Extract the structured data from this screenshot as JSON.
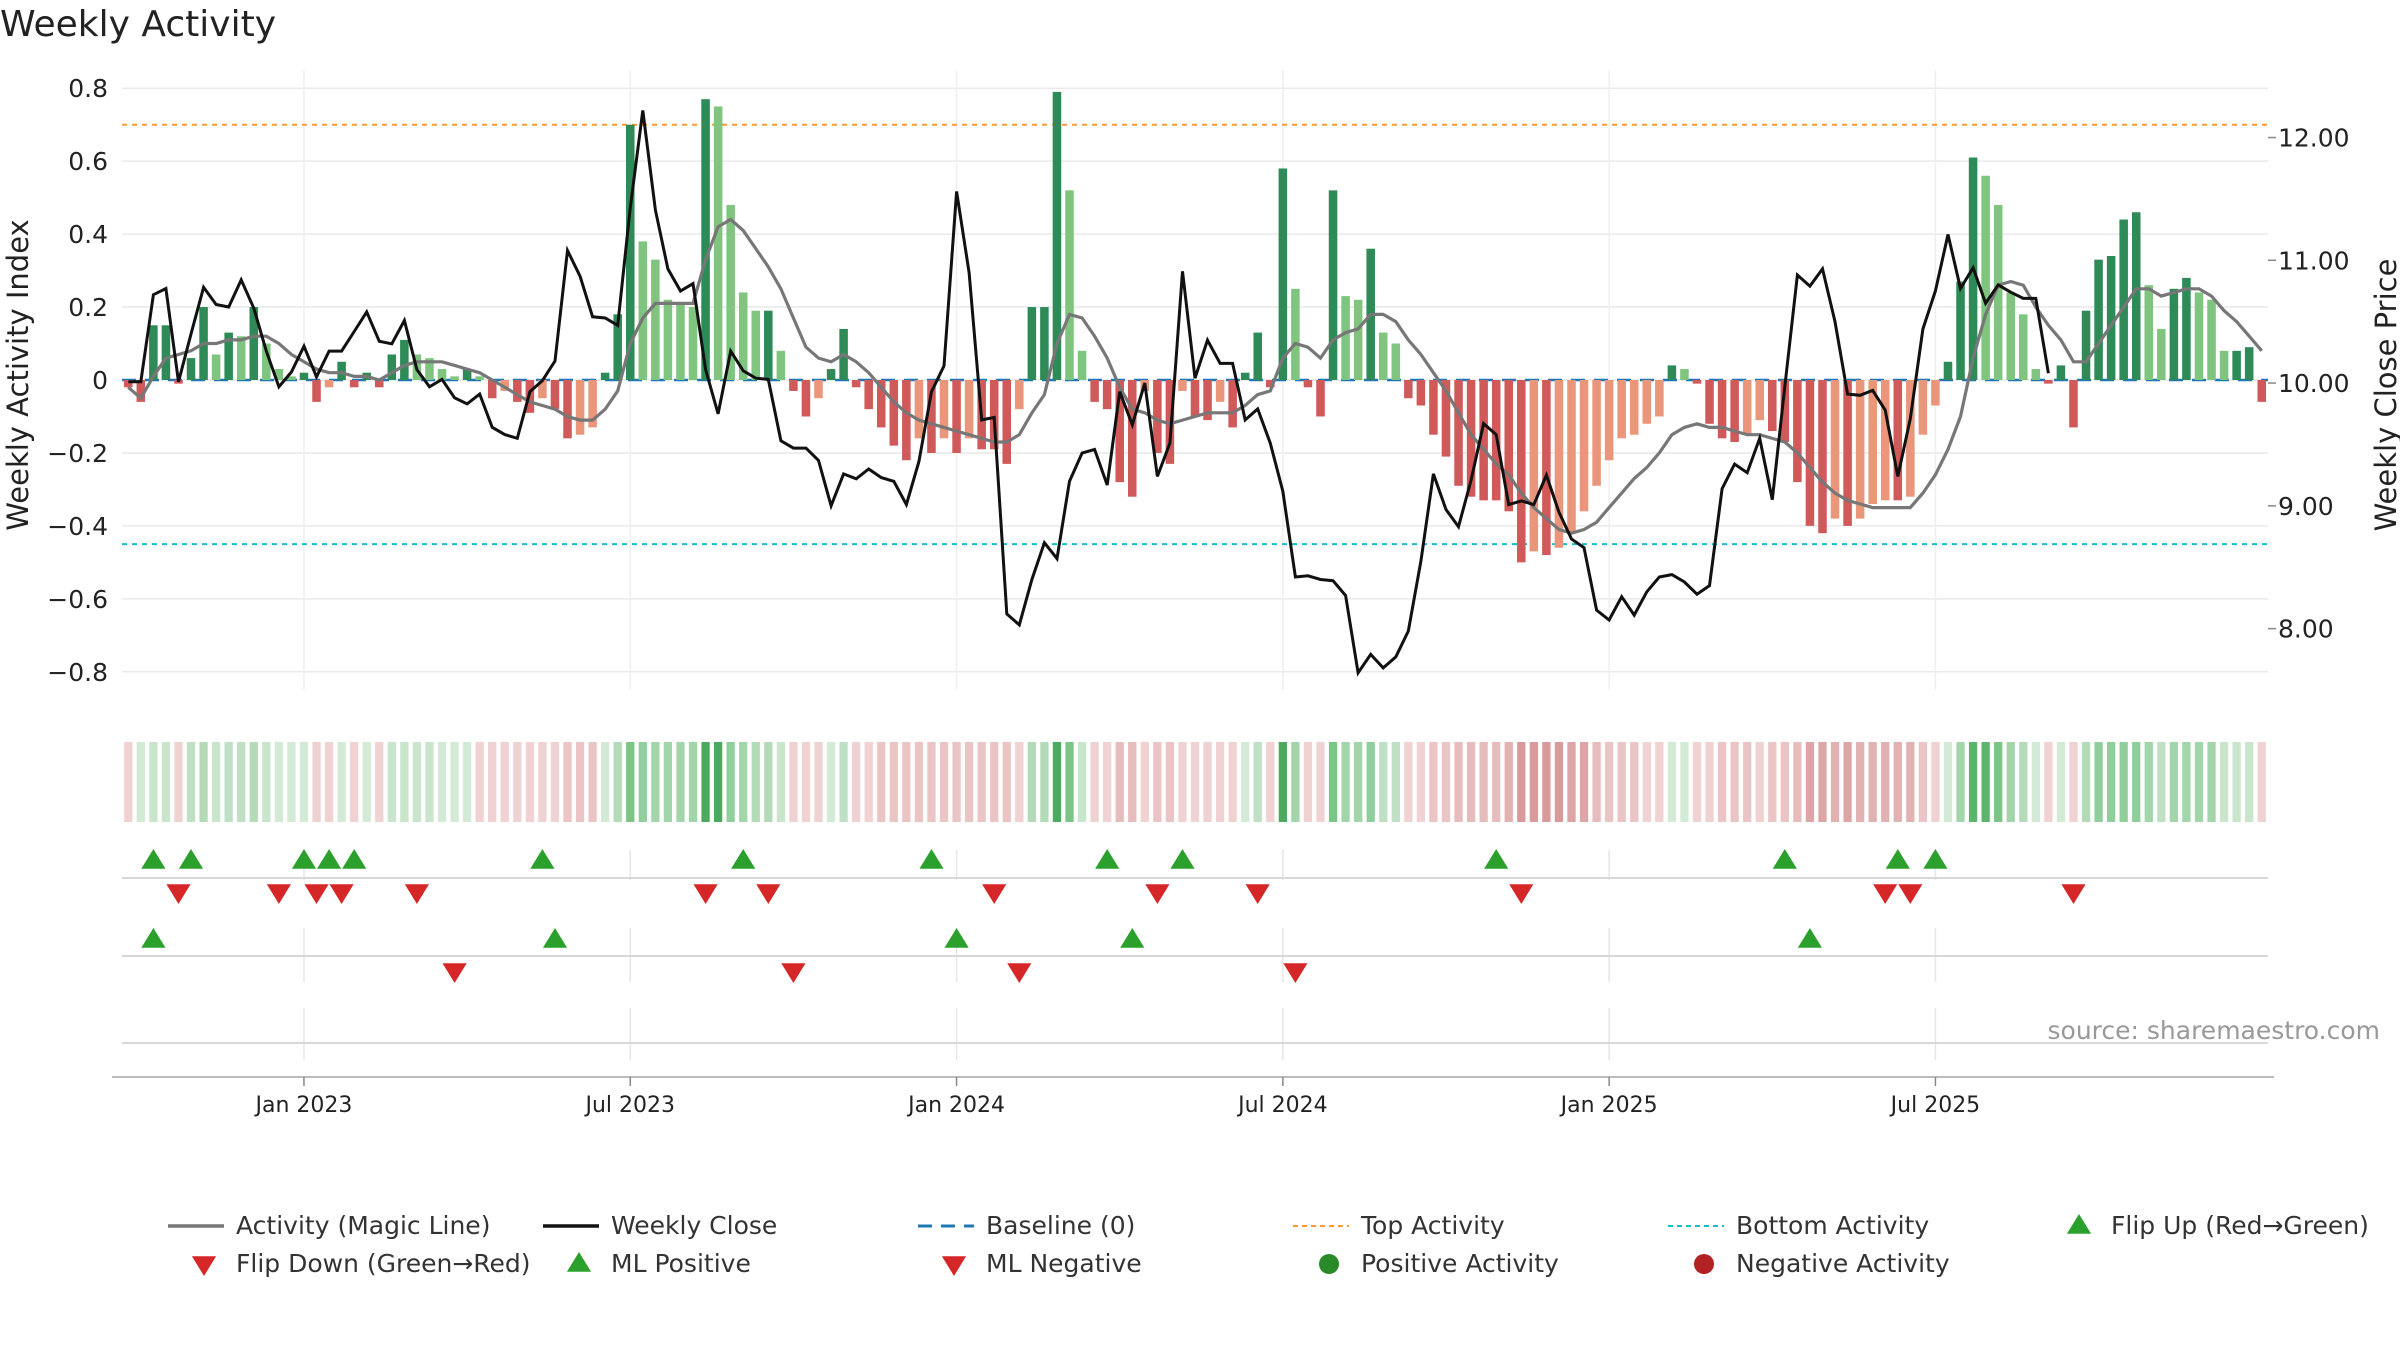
{
  "chart_data": {
    "type": "bar",
    "title": "Weekly Activity",
    "ylabel": "Weekly Activity Index",
    "y2label": "Weekly Close Price",
    "source": "source: sharemaestro.com",
    "ylim": [
      -0.85,
      0.85
    ],
    "y2lim": [
      7.5,
      12.55
    ],
    "yticks": [
      0.8,
      0.6,
      0.4,
      0.2,
      0,
      -0.2,
      -0.4,
      -0.6,
      -0.8
    ],
    "ytick_labels": [
      "0.8",
      "0.6",
      "0.4",
      "0.2",
      "0",
      "−0.2",
      "−0.4",
      "−0.6",
      "−0.8"
    ],
    "y2ticks": [
      12.0,
      11.0,
      10.0,
      9.0,
      8.0
    ],
    "y2tick_labels": [
      "12.00",
      "11.00",
      "10.00",
      "9.00",
      "8.00"
    ],
    "xticks": [
      {
        "week": 14,
        "label": "Jan 2023"
      },
      {
        "week": 40,
        "label": "Jul 2023"
      },
      {
        "week": 66,
        "label": "Jan 2024"
      },
      {
        "week": 92,
        "label": "Jul 2024"
      },
      {
        "week": 118,
        "label": "Jan 2025"
      },
      {
        "week": 144,
        "label": "Jul 2025"
      }
    ],
    "reference_lines": {
      "baseline": 0,
      "top_activity": 0.7,
      "bottom_activity": -0.45
    },
    "activity": [
      -0.02,
      -0.06,
      0.15,
      0.15,
      -0.01,
      0.06,
      0.2,
      0.07,
      0.13,
      0.12,
      0.2,
      0.1,
      0.03,
      0.01,
      0.02,
      -0.06,
      -0.02,
      0.05,
      -0.02,
      0.02,
      -0.02,
      0.07,
      0.11,
      0.07,
      0.06,
      0.03,
      0.01,
      0.03,
      0.01,
      -0.05,
      -0.03,
      -0.06,
      -0.09,
      -0.05,
      -0.08,
      -0.16,
      -0.15,
      -0.13,
      0.02,
      0.18,
      0.7,
      0.38,
      0.33,
      0.22,
      0.21,
      0.2,
      0.77,
      0.75,
      0.48,
      0.24,
      0.19,
      0.19,
      0.08,
      -0.03,
      -0.1,
      -0.05,
      0.03,
      0.14,
      -0.02,
      -0.08,
      -0.13,
      -0.18,
      -0.22,
      -0.16,
      -0.2,
      -0.16,
      -0.2,
      -0.16,
      -0.19,
      -0.19,
      -0.23,
      -0.08,
      0.2,
      0.2,
      0.79,
      0.52,
      0.08,
      -0.06,
      -0.08,
      -0.28,
      -0.32,
      -0.03,
      -0.2,
      -0.23,
      -0.03,
      -0.1,
      -0.11,
      -0.06,
      -0.13,
      0.02,
      0.13,
      -0.02,
      0.58,
      0.25,
      -0.02,
      -0.1,
      0.52,
      0.23,
      0.22,
      0.36,
      0.13,
      0.1,
      -0.05,
      -0.07,
      -0.15,
      -0.21,
      -0.29,
      -0.32,
      -0.33,
      -0.33,
      -0.36,
      -0.5,
      -0.47,
      -0.48,
      -0.46,
      -0.42,
      -0.36,
      -0.29,
      -0.22,
      -0.16,
      -0.15,
      -0.12,
      -0.1,
      0.04,
      0.03,
      -0.01,
      -0.12,
      -0.16,
      -0.17,
      -0.15,
      -0.11,
      -0.14,
      -0.17,
      -0.28,
      -0.4,
      -0.42,
      -0.38,
      -0.4,
      -0.38,
      -0.34,
      -0.33,
      -0.33,
      -0.32,
      -0.15,
      -0.07,
      0.05,
      0.27,
      0.61,
      0.56,
      0.48,
      0.24,
      0.18,
      0.03,
      -0.01,
      0.04,
      -0.13,
      0.19,
      0.33,
      0.34,
      0.44,
      0.46,
      0.26,
      0.14,
      0.25,
      0.28,
      0.24,
      0.22,
      0.08,
      0.08,
      0.09,
      -0.06
    ],
    "magic_line": [
      -0.02,
      -0.05,
      0.01,
      0.06,
      0.07,
      0.08,
      0.1,
      0.1,
      0.11,
      0.11,
      0.12,
      0.12,
      0.1,
      0.07,
      0.05,
      0.03,
      0.02,
      0.02,
      0.01,
      0.01,
      0.0,
      0.02,
      0.04,
      0.05,
      0.05,
      0.05,
      0.04,
      0.03,
      0.02,
      0.0,
      -0.02,
      -0.04,
      -0.06,
      -0.07,
      -0.08,
      -0.1,
      -0.11,
      -0.11,
      -0.08,
      -0.03,
      0.1,
      0.17,
      0.21,
      0.21,
      0.21,
      0.21,
      0.33,
      0.42,
      0.44,
      0.41,
      0.36,
      0.31,
      0.25,
      0.17,
      0.09,
      0.06,
      0.05,
      0.07,
      0.05,
      0.02,
      -0.02,
      -0.06,
      -0.09,
      -0.11,
      -0.12,
      -0.13,
      -0.14,
      -0.15,
      -0.16,
      -0.17,
      -0.17,
      -0.15,
      -0.09,
      -0.04,
      0.1,
      0.18,
      0.17,
      0.12,
      0.06,
      -0.02,
      -0.08,
      -0.09,
      -0.11,
      -0.12,
      -0.11,
      -0.1,
      -0.09,
      -0.09,
      -0.09,
      -0.07,
      -0.04,
      -0.03,
      0.06,
      0.1,
      0.09,
      0.06,
      0.11,
      0.13,
      0.14,
      0.18,
      0.18,
      0.16,
      0.11,
      0.07,
      0.02,
      -0.03,
      -0.09,
      -0.15,
      -0.19,
      -0.23,
      -0.26,
      -0.31,
      -0.35,
      -0.38,
      -0.41,
      -0.42,
      -0.41,
      -0.39,
      -0.35,
      -0.31,
      -0.27,
      -0.24,
      -0.2,
      -0.15,
      -0.13,
      -0.12,
      -0.13,
      -0.13,
      -0.14,
      -0.15,
      -0.15,
      -0.16,
      -0.17,
      -0.2,
      -0.24,
      -0.28,
      -0.31,
      -0.33,
      -0.34,
      -0.35,
      -0.35,
      -0.35,
      -0.35,
      -0.31,
      -0.26,
      -0.19,
      -0.1,
      0.06,
      0.18,
      0.26,
      0.27,
      0.26,
      0.2,
      0.15,
      0.11,
      0.05,
      0.05,
      0.1,
      0.15,
      0.2,
      0.25,
      0.25,
      0.23,
      0.24,
      0.25,
      0.25,
      0.23,
      0.19,
      0.16,
      0.12,
      0.08
    ],
    "weekly_close": [
      10.01,
      10.01,
      10.72,
      10.77,
      10.01,
      10.4,
      10.78,
      10.64,
      10.62,
      10.84,
      10.61,
      10.26,
      9.97,
      10.09,
      10.3,
      10.05,
      10.26,
      10.26,
      10.42,
      10.58,
      10.34,
      10.32,
      10.51,
      10.11,
      9.97,
      10.03,
      9.88,
      9.83,
      9.91,
      9.64,
      9.58,
      9.55,
      9.93,
      10.02,
      10.18,
      11.08,
      10.87,
      10.54,
      10.53,
      10.47,
      11.43,
      12.22,
      11.41,
      10.93,
      10.75,
      10.81,
      10.11,
      9.75,
      10.26,
      10.1,
      10.04,
      10.03,
      9.53,
      9.47,
      9.47,
      9.37,
      9.0,
      9.26,
      9.22,
      9.3,
      9.23,
      9.2,
      9.01,
      9.36,
      9.93,
      10.14,
      11.56,
      10.9,
      9.7,
      9.72,
      8.12,
      8.03,
      8.4,
      8.7,
      8.57,
      9.2,
      9.43,
      9.46,
      9.17,
      9.93,
      9.66,
      10.0,
      9.24,
      9.51,
      10.91,
      10.04,
      10.35,
      10.16,
      10.16,
      9.7,
      9.79,
      9.51,
      9.12,
      8.42,
      8.43,
      8.4,
      8.39,
      8.27,
      7.64,
      7.79,
      7.68,
      7.77,
      7.98,
      8.55,
      9.26,
      8.97,
      8.83,
      9.21,
      9.67,
      9.58,
      9.01,
      9.04,
      9.01,
      9.25,
      8.95,
      8.73,
      8.66,
      8.15,
      8.07,
      8.26,
      8.11,
      8.3,
      8.42,
      8.44,
      8.38,
      8.28,
      8.35,
      9.14,
      9.34,
      9.27,
      9.55,
      9.05,
      9.97,
      10.88,
      10.79,
      10.93,
      10.5,
      9.91,
      9.9,
      9.94,
      9.78,
      9.24,
      9.71,
      10.44,
      10.75,
      11.21,
      10.77,
      10.94,
      10.65,
      10.8,
      10.74,
      10.69,
      10.69,
      10.08
    ],
    "state_strip_colors": [
      "#f0d2d2",
      "#d3ebd6",
      "#c9e6cc",
      "#c9e6cc",
      "#f0d2d2",
      "#bfe0c4",
      "#b3dbb8",
      "#c9e6cc",
      "#bfe0c4",
      "#bfe0c4",
      "#b3dbb8",
      "#c9e6cc",
      "#d3ebd6",
      "#d3ebd6",
      "#d3ebd6",
      "#f0d2d2",
      "#f0d2d2",
      "#d3ebd6",
      "#f0d2d2",
      "#d3ebd6",
      "#f0d2d2",
      "#c9e6cc",
      "#c9e6cc",
      "#c9e6cc",
      "#c9e6cc",
      "#d3ebd6",
      "#d3ebd6",
      "#d3ebd6",
      "#f0d2d2",
      "#f0d2d2",
      "#f0d2d2",
      "#f0d2d2",
      "#f0d2d2",
      "#f0d2d2",
      "#f0d2d2",
      "#ebc5c5",
      "#ebc5c5",
      "#ebc5c5",
      "#d3ebd6",
      "#b3dbb8",
      "#7bc587",
      "#90cf9b",
      "#a2d6aa",
      "#a2d6aa",
      "#a2d6aa",
      "#a2d6aa",
      "#4caa5f",
      "#4caa5f",
      "#90cf9b",
      "#a2d6aa",
      "#b3dbb8",
      "#b3dbb8",
      "#c9e6cc",
      "#f0d2d2",
      "#f0d2d2",
      "#f0d2d2",
      "#d3ebd6",
      "#bfe0c4",
      "#f0d2d2",
      "#f0d2d2",
      "#ebc5c5",
      "#ebc5c5",
      "#ebc5c5",
      "#ebc5c5",
      "#ebc5c5",
      "#ebc5c5",
      "#ebc5c5",
      "#ebc5c5",
      "#ebc5c5",
      "#ebc5c5",
      "#ebc5c5",
      "#f0d2d2",
      "#b3dbb8",
      "#b3dbb8",
      "#4caa5f",
      "#7bc587",
      "#c9e6cc",
      "#f0d2d2",
      "#f0d2d2",
      "#e6bcbc",
      "#e6bcbc",
      "#f0d2d2",
      "#ebc5c5",
      "#ebc5c5",
      "#f0d2d2",
      "#f0d2d2",
      "#f0d2d2",
      "#f0d2d2",
      "#f0d2d2",
      "#d3ebd6",
      "#bfe0c4",
      "#f0d2d2",
      "#4caa5f",
      "#a2d6aa",
      "#f0d2d2",
      "#f0d2d2",
      "#7bc587",
      "#a2d6aa",
      "#a2d6aa",
      "#90cf9b",
      "#bfe0c4",
      "#bfe0c4",
      "#f0d2d2",
      "#f0d2d2",
      "#ebc5c5",
      "#ebc5c5",
      "#e6bcbc",
      "#e6bcbc",
      "#e6bcbc",
      "#e6bcbc",
      "#e0b2b2",
      "#d89a9a",
      "#d89a9a",
      "#d89a9a",
      "#d89a9a",
      "#dca6a6",
      "#dca6a6",
      "#e6bcbc",
      "#ebc5c5",
      "#ebc5c5",
      "#ebc5c5",
      "#f0d2d2",
      "#f0d2d2",
      "#d3ebd6",
      "#d3ebd6",
      "#f0d2d2",
      "#f0d2d2",
      "#ebc5c5",
      "#ebc5c5",
      "#ebc5c5",
      "#f0d2d2",
      "#ebc5c5",
      "#ebc5c5",
      "#e6bcbc",
      "#dca6a6",
      "#dca6a6",
      "#e0b2b2",
      "#dca6a6",
      "#e0b2b2",
      "#e0b2b2",
      "#e0b2b2",
      "#e0b2b2",
      "#e0b2b2",
      "#ebc5c5",
      "#f0d2d2",
      "#d3ebd6",
      "#a2d6aa",
      "#5cb46d",
      "#5cb46d",
      "#7bc587",
      "#a2d6aa",
      "#b3dbb8",
      "#d3ebd6",
      "#f0d2d2",
      "#d3ebd6",
      "#f0d2d2",
      "#b3dbb8",
      "#90cf9b",
      "#90cf9b",
      "#90cf9b",
      "#90cf9b",
      "#a2d6aa",
      "#bfe0c4",
      "#a2d6aa",
      "#a2d6aa",
      "#a2d6aa",
      "#a2d6aa",
      "#c9e6cc",
      "#c9e6cc",
      "#c9e6cc",
      "#f0d2d2"
    ],
    "flips": {
      "up": [
        2,
        5,
        14,
        16,
        18,
        33,
        49,
        64,
        78,
        84,
        109,
        132,
        141,
        144
      ],
      "down": [
        4,
        12,
        15,
        17,
        23,
        46,
        51,
        69,
        82,
        90,
        111,
        140,
        142,
        155
      ]
    },
    "ml_signals": {
      "positive": [
        2,
        34,
        66,
        80,
        134
      ],
      "negative": [
        26,
        53,
        71,
        93
      ]
    },
    "legend": [
      {
        "label": "Activity (Magic Line)",
        "marker": "line",
        "color": "#777777"
      },
      {
        "label": "Weekly Close",
        "marker": "line",
        "color": "#111111"
      },
      {
        "label": "Baseline (0)",
        "marker": "dash",
        "color": "#1f77b4"
      },
      {
        "label": "Top Activity",
        "marker": "dot",
        "color": "#ff9933"
      },
      {
        "label": "Bottom Activity",
        "marker": "dot",
        "color": "#17becf"
      },
      {
        "label": "Flip Up (Red→Green)",
        "marker": "tri-up",
        "color": "#2ca02c"
      },
      {
        "label": "Flip Down (Green→Red)",
        "marker": "tri-down",
        "color": "#d62728"
      },
      {
        "label": "ML Positive",
        "marker": "tri-up",
        "color": "#2ca02c"
      },
      {
        "label": "ML Negative",
        "marker": "tri-down",
        "color": "#d62728"
      },
      {
        "label": "Positive Activity",
        "marker": "circle",
        "color": "#2a8a2a"
      },
      {
        "label": "Negative Activity",
        "marker": "circle",
        "color": "#b22222"
      }
    ],
    "colors": {
      "pos_dark": "#2e8b57",
      "pos_light": "#7fc47f",
      "neg_dark": "#d05a5a",
      "neg_light": "#e9967a",
      "magic_line": "#777777",
      "close_line": "#111111",
      "baseline": "#1f77b4",
      "top_line": "#ff9933",
      "bottom_line": "#17becf",
      "up_marker": "#2ca02c",
      "down_marker": "#d62728"
    }
  }
}
